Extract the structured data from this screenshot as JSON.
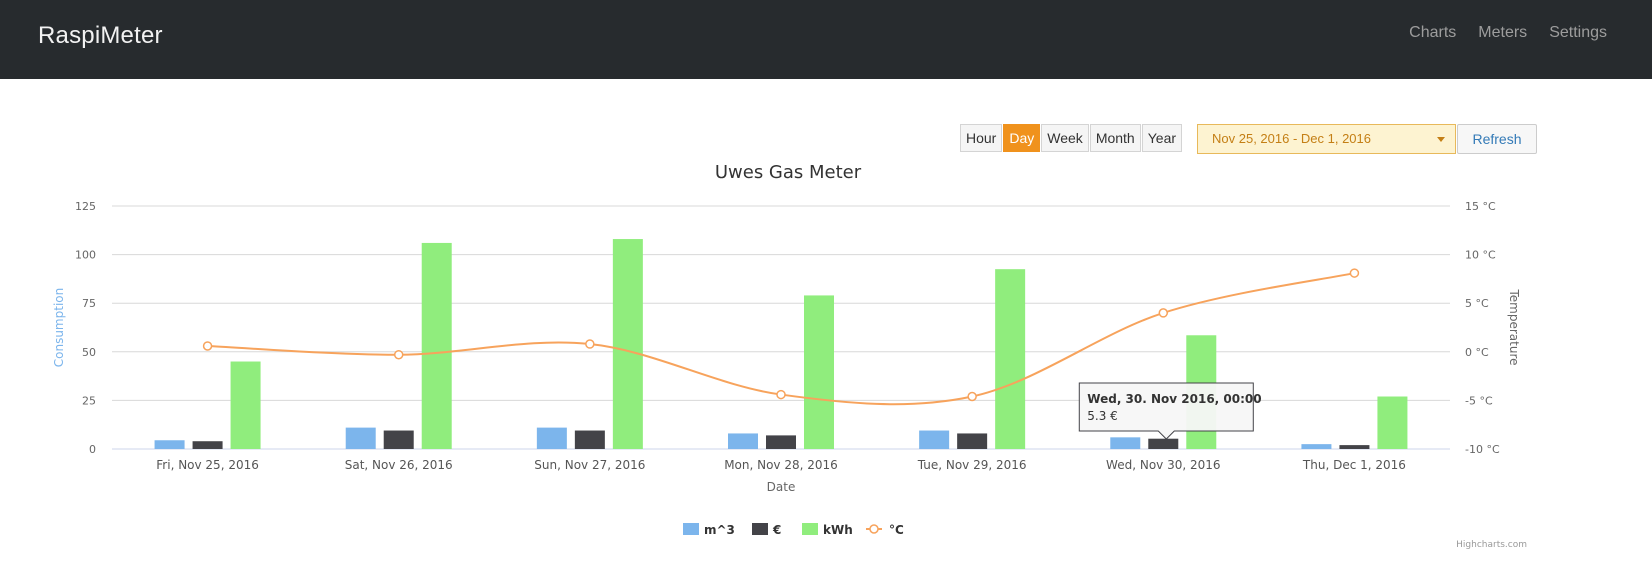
{
  "navbar": {
    "brand": "RaspiMeter",
    "links": [
      "Charts",
      "Meters",
      "Settings"
    ]
  },
  "controls": {
    "ranges": [
      "Hour",
      "Day",
      "Week",
      "Month",
      "Year"
    ],
    "active_range": "Day",
    "date_range": "Nov 25, 2016 - Dec 1, 2016",
    "refresh_label": "Refresh"
  },
  "colors": {
    "m3": "#7cb5ec",
    "euro": "#434348",
    "kwh": "#90ed7d",
    "temp": "#f7a35c",
    "accent": "#f0921d"
  },
  "chart_data": {
    "type": "bar",
    "title": "Uwes Gas Meter",
    "xlabel": "Date",
    "ylabel": "Consumption",
    "y2label": "Temperature",
    "ylim": [
      0,
      125
    ],
    "y2lim": [
      -10,
      15
    ],
    "yticks": [
      "0",
      "25",
      "50",
      "75",
      "100",
      "125"
    ],
    "y2ticks": [
      "-10 °C",
      "-5 °C",
      "0 °C",
      "5 °C",
      "10 °C",
      "15 °C"
    ],
    "categories": [
      "Fri, Nov 25, 2016",
      "Sat, Nov 26, 2016",
      "Sun, Nov 27, 2016",
      "Mon, Nov 28, 2016",
      "Tue, Nov 29, 2016",
      "Wed, Nov 30, 2016",
      "Thu, Dec 1, 2016"
    ],
    "series": [
      {
        "name": "m^3",
        "values": [
          4.5,
          11,
          11,
          8,
          9.5,
          6,
          2.5
        ]
      },
      {
        "name": "€",
        "values": [
          4,
          9.5,
          9.5,
          7,
          8,
          5.3,
          2
        ]
      },
      {
        "name": "kWh",
        "values": [
          45,
          106,
          108,
          79,
          92.5,
          58.5,
          27
        ]
      },
      {
        "name": "°C",
        "line": true,
        "values": [
          0.6,
          -0.3,
          0.8,
          -4.4,
          -4.6,
          4.0,
          8.1
        ]
      }
    ],
    "legend_position": "bottom",
    "grid": true,
    "tooltip": {
      "title": "Wed, 30. Nov 2016, 00:00",
      "value": "5.3 €"
    },
    "credits": "Highcharts.com"
  }
}
